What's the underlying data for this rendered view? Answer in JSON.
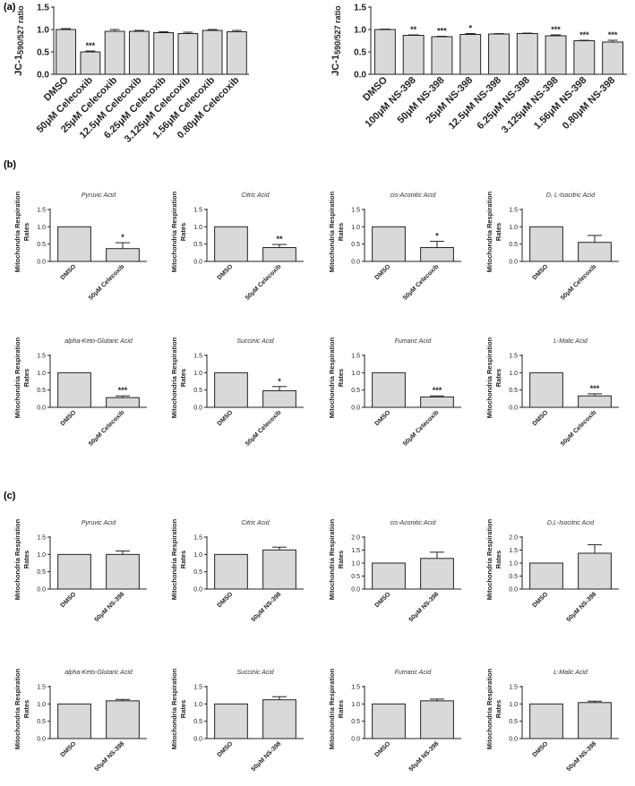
{
  "panel_labels": {
    "a": "(a)",
    "b": "(b)",
    "c": "(c)"
  },
  "chart_data": [
    {
      "id": "a1",
      "type": "bar",
      "title": "",
      "xlabel": "",
      "ylabel": "JC-1590/527 ratio",
      "ylabel_main": "JC-1",
      "ylabel_sub": "590/527 ratio",
      "ylim": [
        0,
        1.5
      ],
      "yticks": [
        0.0,
        0.5,
        1.0,
        1.5
      ],
      "categories": [
        "DMSO",
        "50μM Celecoxib",
        "25μM Celecoxib",
        "12.5μM Celecoxib",
        "6.25μM Celecoxib",
        "3.125μM Celecoxib",
        "1.56μM Celecoxib",
        "0.80μM Celecoxib"
      ],
      "values": [
        1.0,
        0.5,
        0.96,
        0.96,
        0.93,
        0.91,
        0.98,
        0.95
      ],
      "errors": [
        0.02,
        0.02,
        0.04,
        0.02,
        0.02,
        0.03,
        0.02,
        0.03
      ],
      "annotations": [
        "",
        "***",
        "",
        "",
        "",
        "",
        "",
        ""
      ]
    },
    {
      "id": "a2",
      "type": "bar",
      "title": "",
      "xlabel": "",
      "ylabel": "JC-1590/527 ratio",
      "ylabel_main": "JC-1",
      "ylabel_sub": "590/527 ratio",
      "ylim": [
        0,
        1.5
      ],
      "yticks": [
        0.0,
        0.5,
        1.0,
        1.5
      ],
      "categories": [
        "DMSO",
        "100μM NS-398",
        "50μM NS-398",
        "25μM NS-398",
        "12.5μM NS-398",
        "6.25μM NS-398",
        "3.125μM NS-398",
        "1.56μM NS-398",
        "0.80μM NS-398"
      ],
      "values": [
        1.0,
        0.87,
        0.84,
        0.89,
        0.9,
        0.91,
        0.86,
        0.75,
        0.72
      ],
      "errors": [
        0.01,
        0.01,
        0.01,
        0.02,
        0.01,
        0.01,
        0.02,
        0.01,
        0.04
      ],
      "annotations": [
        "",
        "**",
        "***",
        "*",
        "",
        "",
        "***",
        "***",
        "***"
      ]
    },
    {
      "id": "b1",
      "type": "bar",
      "title": "Pyruvic Acid",
      "xlabel": "",
      "ylabel": "Mitochondria Respiration Rates",
      "ylim": [
        0,
        1.5
      ],
      "yticks": [
        0.0,
        0.5,
        1.0,
        1.5
      ],
      "categories": [
        "DMSO",
        "50μM Celecoxib"
      ],
      "values": [
        1.0,
        0.37
      ],
      "errors": [
        0,
        0.17
      ],
      "annotations": [
        "",
        "*"
      ]
    },
    {
      "id": "b2",
      "type": "bar",
      "title": "Citric Acid",
      "xlabel": "",
      "ylabel": "Mitochondria Respiration Rates",
      "ylim": [
        0,
        1.5
      ],
      "yticks": [
        0.0,
        0.5,
        1.0,
        1.5
      ],
      "categories": [
        "DMSO",
        "50μM Celecoxib"
      ],
      "values": [
        1.0,
        0.4
      ],
      "errors": [
        0,
        0.09
      ],
      "annotations": [
        "",
        "**"
      ]
    },
    {
      "id": "b3",
      "type": "bar",
      "title": "cis-Aconitic Acid",
      "xlabel": "",
      "ylabel": "Mitochondria Respiration Rates",
      "ylim": [
        0,
        1.5
      ],
      "yticks": [
        0.0,
        0.5,
        1.0,
        1.5
      ],
      "categories": [
        "DMSO",
        "50μM Celecoxib"
      ],
      "values": [
        1.0,
        0.4
      ],
      "errors": [
        0,
        0.18
      ],
      "annotations": [
        "",
        "*"
      ]
    },
    {
      "id": "b4",
      "type": "bar",
      "title": "D, L-Isocitric Acid",
      "xlabel": "",
      "ylabel": "Mitochondria Respiration Rates",
      "ylim": [
        0,
        1.5
      ],
      "yticks": [
        0.0,
        0.5,
        1.0,
        1.5
      ],
      "categories": [
        "DMSO",
        "50μM Celecoxib"
      ],
      "values": [
        1.0,
        0.55
      ],
      "errors": [
        0,
        0.2
      ],
      "annotations": [
        "",
        ""
      ]
    },
    {
      "id": "b5",
      "type": "bar",
      "title": "alpha-Keto-Glutaric Acid",
      "xlabel": "",
      "ylabel": "Mitochondria Respiration Rates",
      "ylim": [
        0,
        1.5
      ],
      "yticks": [
        0.0,
        0.5,
        1.0,
        1.5
      ],
      "categories": [
        "DMSO",
        "50μM Celecoxib"
      ],
      "values": [
        1.0,
        0.28
      ],
      "errors": [
        0,
        0.05
      ],
      "annotations": [
        "",
        "***"
      ]
    },
    {
      "id": "b6",
      "type": "bar",
      "title": "Succinic Acid",
      "xlabel": "",
      "ylabel": "Mitochondria Respiration Rates",
      "ylim": [
        0,
        1.5
      ],
      "yticks": [
        0.0,
        0.5,
        1.0,
        1.5
      ],
      "categories": [
        "DMSO",
        "50μM Celecoxib"
      ],
      "values": [
        1.0,
        0.48
      ],
      "errors": [
        0,
        0.12
      ],
      "annotations": [
        "",
        "*"
      ]
    },
    {
      "id": "b7",
      "type": "bar",
      "title": "Fumaric Acid",
      "xlabel": "",
      "ylabel": "Mitochondria Respiration Rates",
      "ylim": [
        0,
        1.5
      ],
      "yticks": [
        0.0,
        0.5,
        1.0,
        1.5
      ],
      "categories": [
        "DMSO",
        "50μM Celecoxib"
      ],
      "values": [
        1.0,
        0.3
      ],
      "errors": [
        0,
        0.03
      ],
      "annotations": [
        "",
        "***"
      ]
    },
    {
      "id": "b8",
      "type": "bar",
      "title": "L-Malic Acid",
      "xlabel": "",
      "ylabel": "Mitochondria Respiration Rates",
      "ylim": [
        0,
        1.5
      ],
      "yticks": [
        0.0,
        0.5,
        1.0,
        1.5
      ],
      "categories": [
        "DMSO",
        "50μM Celecoxib"
      ],
      "values": [
        1.0,
        0.33
      ],
      "errors": [
        0,
        0.06
      ],
      "annotations": [
        "",
        "***"
      ]
    },
    {
      "id": "c1",
      "type": "bar",
      "title": "Pyruvic Acid",
      "xlabel": "",
      "ylabel": "Mitochondria Respiration Rates",
      "ylim": [
        0,
        1.5
      ],
      "yticks": [
        0.0,
        0.5,
        1.0,
        1.5
      ],
      "categories": [
        "DMSO",
        "50μM NS-398"
      ],
      "values": [
        1.0,
        1.0
      ],
      "errors": [
        0,
        0.1
      ],
      "annotations": [
        "",
        ""
      ]
    },
    {
      "id": "c2",
      "type": "bar",
      "title": "Citric Acid",
      "xlabel": "",
      "ylabel": "Mitochondria Respiration Rates",
      "ylim": [
        0,
        1.5
      ],
      "yticks": [
        0.0,
        0.5,
        1.0,
        1.5
      ],
      "categories": [
        "DMSO",
        "50μM NS-398"
      ],
      "values": [
        1.0,
        1.13
      ],
      "errors": [
        0,
        0.08
      ],
      "annotations": [
        "",
        ""
      ]
    },
    {
      "id": "c3",
      "type": "bar",
      "title": "cis-Aconitic Acid",
      "xlabel": "",
      "ylabel": "Mitochondria Respiration Rates",
      "ylim": [
        0,
        2.0
      ],
      "yticks": [
        0.0,
        0.5,
        1.0,
        1.5,
        2.0
      ],
      "categories": [
        "DMSO",
        "50μM NS-398"
      ],
      "values": [
        1.0,
        1.18
      ],
      "errors": [
        0,
        0.24
      ],
      "annotations": [
        "",
        ""
      ]
    },
    {
      "id": "c4",
      "type": "bar",
      "title": "D,L-Isocitric Acid",
      "xlabel": "",
      "ylabel": "Mitochondria Respiration Rates",
      "ylim": [
        0,
        2.0
      ],
      "yticks": [
        0.0,
        0.5,
        1.0,
        1.5,
        2.0
      ],
      "categories": [
        "DMSO",
        "50μM NS-398"
      ],
      "values": [
        1.0,
        1.38
      ],
      "errors": [
        0,
        0.33
      ],
      "annotations": [
        "",
        ""
      ]
    },
    {
      "id": "c5",
      "type": "bar",
      "title": "alpha-Keto-Glutaric Acid",
      "xlabel": "",
      "ylabel": "Mitochondria Respiration Rates",
      "ylim": [
        0,
        1.5
      ],
      "yticks": [
        0.0,
        0.5,
        1.0,
        1.5
      ],
      "categories": [
        "DMSO",
        "50μM NS-398"
      ],
      "values": [
        1.0,
        1.09
      ],
      "errors": [
        0,
        0.04
      ],
      "annotations": [
        "",
        ""
      ]
    },
    {
      "id": "c6",
      "type": "bar",
      "title": "Succinic Acid",
      "xlabel": "",
      "ylabel": "Mitochondria Respiration Rates",
      "ylim": [
        0,
        1.5
      ],
      "yticks": [
        0.0,
        0.5,
        1.0,
        1.5
      ],
      "categories": [
        "DMSO",
        "50μM NS-398"
      ],
      "values": [
        1.0,
        1.12
      ],
      "errors": [
        0,
        0.09
      ],
      "annotations": [
        "",
        ""
      ]
    },
    {
      "id": "c7",
      "type": "bar",
      "title": "Fumaric Acid",
      "xlabel": "",
      "ylabel": "Mitochondria Respiration Rates",
      "ylim": [
        0,
        1.5
      ],
      "yticks": [
        0.0,
        0.5,
        1.0,
        1.5
      ],
      "categories": [
        "DMSO",
        "50μM NS-398"
      ],
      "values": [
        1.0,
        1.09
      ],
      "errors": [
        0,
        0.05
      ],
      "annotations": [
        "",
        ""
      ]
    },
    {
      "id": "c8",
      "type": "bar",
      "title": "L-Malic Acid",
      "xlabel": "",
      "ylabel": "Mitochondria Respiration Rates",
      "ylim": [
        0,
        1.5
      ],
      "yticks": [
        0.0,
        0.5,
        1.0,
        1.5
      ],
      "categories": [
        "DMSO",
        "50μM NS-398"
      ],
      "values": [
        1.0,
        1.04
      ],
      "errors": [
        0,
        0.04
      ],
      "annotations": [
        "",
        ""
      ]
    }
  ]
}
